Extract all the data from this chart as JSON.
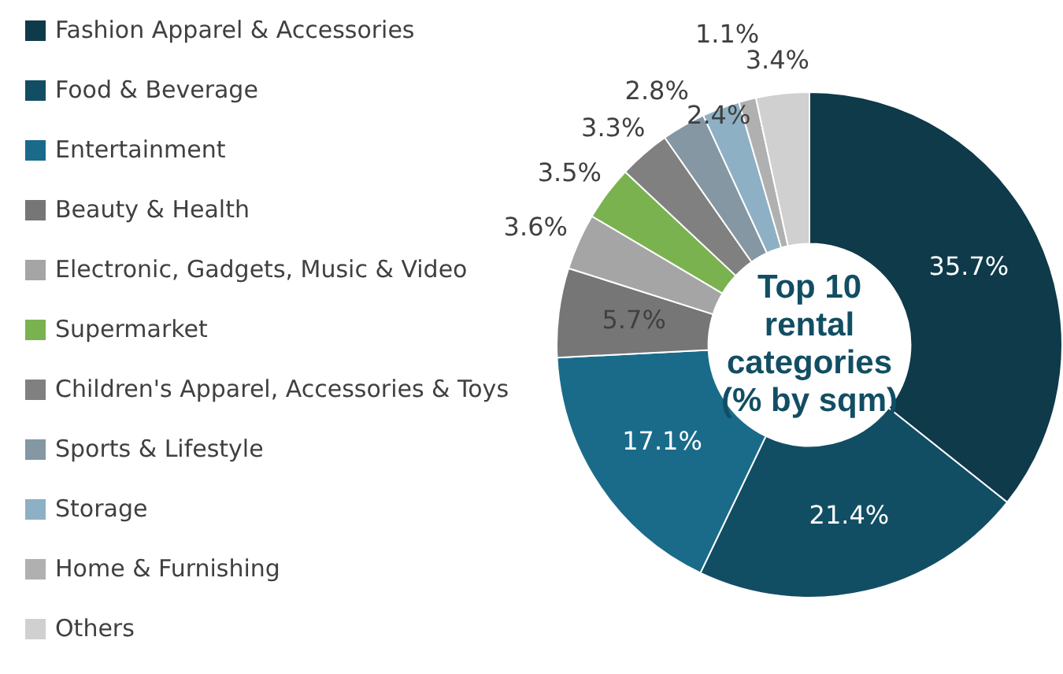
{
  "chart_data": {
    "type": "donut",
    "title": "Top 10 rental categories (% by sqm)",
    "categories": [
      "Fashion Apparel & Accessories",
      "Food & Beverage",
      "Entertainment",
      "Beauty & Health",
      "Electronic, Gadgets, Music & Video",
      "Supermarket",
      "Children's Apparel, Accessories & Toys",
      "Sports & Lifestyle",
      "Storage",
      "Home & Furnishing",
      "Others"
    ],
    "values": [
      35.7,
      21.4,
      17.1,
      5.7,
      3.6,
      3.5,
      3.3,
      2.8,
      2.4,
      1.1,
      3.4
    ],
    "value_labels": [
      "35.7%",
      "21.4%",
      "17.1%",
      "5.7%",
      "3.6%",
      "3.5%",
      "3.3%",
      "2.8%",
      "2.4%",
      "1.1%",
      "3.4%"
    ],
    "colors": [
      "#0e3a4a",
      "#124e63",
      "#1a6b8a",
      "#767676",
      "#a5a5a5",
      "#7ab24f",
      "#808080",
      "#8497a3",
      "#8eb0c4",
      "#b0b0b0",
      "#d0d0d0"
    ],
    "legend": "left"
  }
}
